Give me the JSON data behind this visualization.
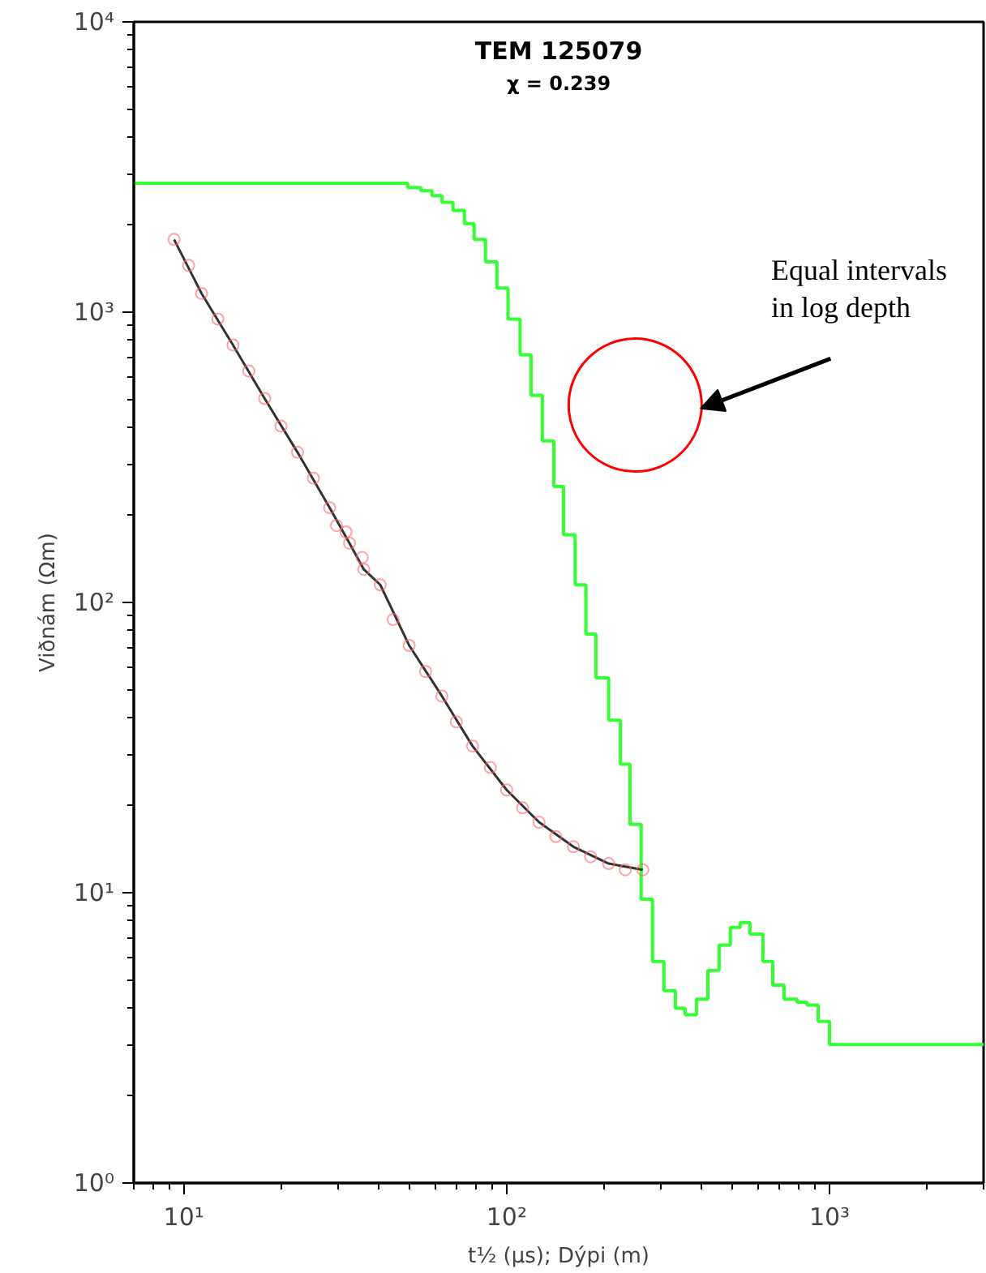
{
  "chart_data": {
    "type": "line",
    "title": "TEM 125079",
    "subtitle": "χ = 0.239",
    "xlabel": "t½ (µs); Dýpi (m)",
    "ylabel": "Viðnám (Ωm)",
    "log": "xy",
    "grid": false,
    "xlim": [
      7,
      3000
    ],
    "ylim": [
      1,
      10000
    ],
    "xticks": [
      {
        "value": 10,
        "label": "10¹"
      },
      {
        "value": 100,
        "label": "10²"
      },
      {
        "value": 1000,
        "label": "10³"
      }
    ],
    "yticks": [
      {
        "value": 1,
        "label": "10⁰"
      },
      {
        "value": 10,
        "label": "10¹"
      },
      {
        "value": 100,
        "label": "10²"
      },
      {
        "value": 1000,
        "label": "10³"
      },
      {
        "value": 10000,
        "label": "10⁴"
      }
    ],
    "annotations": [
      "Equal intervals in log depth"
    ],
    "series": [
      {
        "type": "step",
        "color": "#33ff33",
        "x": [
          7,
          49.4,
          54.2,
          58.7,
          63.0,
          68.2,
          74.0,
          79.3,
          86.0,
          93.3,
          101,
          110,
          119,
          129,
          140,
          150,
          163,
          176,
          189,
          207,
          225,
          241,
          261,
          283,
          307,
          333,
          357,
          387,
          420,
          455,
          493,
          529,
          567,
          622,
          667,
          723,
          793,
          851,
          922,
          1000,
          3000
        ],
        "values": [
          2780,
          2690,
          2620,
          2520,
          2390,
          2240,
          2020,
          1780,
          1490,
          1210,
          947,
          713,
          517,
          360,
          251,
          171,
          115,
          77.8,
          55.0,
          39.3,
          27.7,
          17.2,
          9.5,
          5.8,
          4.6,
          4.0,
          3.8,
          4.3,
          5.4,
          6.6,
          7.6,
          7.9,
          7.2,
          5.8,
          4.8,
          4.3,
          4.2,
          4.1,
          3.6,
          3.0,
          3.0
        ]
      },
      {
        "color": "#333333",
        "marker": "none",
        "x": [
          9.33,
          11.35,
          14.2,
          17.8,
          22.5,
          28.3,
          32.6,
          36.1,
          40.6,
          49.9,
          63.0,
          78.4,
          100,
          126,
          161,
          207,
          264
        ],
        "values": [
          1780,
          1160,
          771,
          504,
          329,
          212,
          160,
          130,
          115,
          71.1,
          47.6,
          32.0,
          22.6,
          17.5,
          14.4,
          12.6,
          12.0
        ]
      },
      {
        "type": "scatter",
        "color": "#ff6666",
        "marker": "circle",
        "x": [
          9.33,
          10.35,
          11.35,
          12.75,
          14.2,
          15.9,
          17.8,
          20.0,
          22.5,
          25.2,
          28.3,
          29.7,
          31.8,
          32.6,
          35.7,
          36.1,
          40.6,
          44.5,
          49.9,
          56.1,
          63.0,
          69.8,
          78.4,
          89.0,
          100,
          112,
          126,
          142,
          161,
          182,
          207,
          233,
          264
        ],
        "values": [
          1780,
          1450,
          1160,
          947,
          771,
          627,
          504,
          405,
          329,
          268,
          212,
          184,
          175,
          160,
          143,
          130,
          115,
          87.3,
          71.1,
          57.8,
          47.6,
          38.8,
          32.0,
          27.0,
          22.6,
          19.6,
          17.5,
          15.6,
          14.4,
          13.3,
          12.6,
          12.0,
          12.0
        ]
      }
    ]
  }
}
